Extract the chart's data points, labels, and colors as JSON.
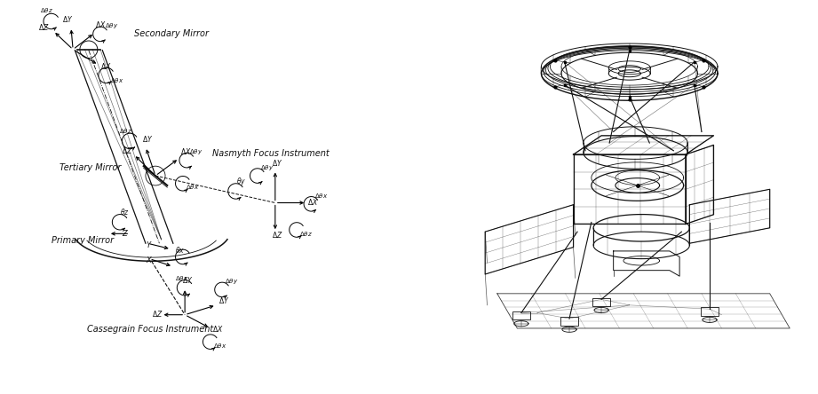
{
  "bg_color": "#ffffff",
  "lc": "#111111",
  "tc": "#111111",
  "fig_width": 9.21,
  "fig_height": 4.44,
  "dpi": 100,
  "labels": {
    "secondary_mirror": "Secondary Mirror",
    "tertiary_mirror": "Tertiary Mirror",
    "primary_mirror": "Primary Mirror",
    "nasmyth": "Nasmyth Focus Instrument",
    "cassegrain": "Cassegrain Focus Instrument"
  }
}
